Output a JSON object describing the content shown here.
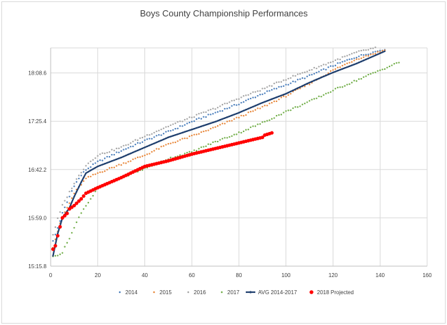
{
  "chart_data": {
    "type": "scatter",
    "title": "Boys County Championship Performances",
    "xlabel": "",
    "ylabel": "",
    "xlim": [
      0,
      160
    ],
    "x_ticks": [
      0,
      20,
      40,
      60,
      80,
      100,
      120,
      140,
      160
    ],
    "x_tick_labels": [
      "0",
      "20",
      "40",
      "60",
      "80",
      "100",
      "120",
      "140",
      "160"
    ],
    "ylim_seconds": [
      915.8,
      1111.0
    ],
    "y_ticks_seconds": [
      915.8,
      959.0,
      1002.2,
      1045.4,
      1088.6
    ],
    "y_tick_labels": [
      "15:15.8",
      "15:59.0",
      "16:42.2",
      "17:25.4",
      "18:08.6"
    ],
    "grid": true,
    "legend_position": "bottom",
    "series": [
      {
        "name": "2014",
        "style": "small-dots",
        "color": "#4a7ebb",
        "n": 142,
        "anchors": [
          [
            1,
            938
          ],
          [
            3,
            950
          ],
          [
            5,
            963
          ],
          [
            8,
            978
          ],
          [
            10,
            988
          ],
          [
            13,
            997
          ],
          [
            15,
            1002
          ],
          [
            20,
            1009
          ],
          [
            30,
            1019
          ],
          [
            40,
            1028
          ],
          [
            50,
            1036
          ],
          [
            60,
            1045
          ],
          [
            70,
            1053
          ],
          [
            80,
            1061
          ],
          [
            90,
            1070
          ],
          [
            100,
            1078
          ],
          [
            110,
            1086
          ],
          [
            120,
            1095
          ],
          [
            130,
            1103
          ],
          [
            142,
            1110
          ]
        ]
      },
      {
        "name": "2015",
        "style": "small-dots",
        "color": "#e8873a",
        "n": 142,
        "anchors": [
          [
            1,
            933
          ],
          [
            3,
            947
          ],
          [
            5,
            960
          ],
          [
            8,
            972
          ],
          [
            10,
            981
          ],
          [
            13,
            989
          ],
          [
            15,
            994
          ],
          [
            20,
            999
          ],
          [
            30,
            1007
          ],
          [
            40,
            1015
          ],
          [
            50,
            1025
          ],
          [
            60,
            1032
          ],
          [
            70,
            1040
          ],
          [
            80,
            1049
          ],
          [
            90,
            1058
          ],
          [
            100,
            1068
          ],
          [
            110,
            1079
          ],
          [
            120,
            1091
          ],
          [
            130,
            1101
          ],
          [
            142,
            1109
          ]
        ]
      },
      {
        "name": "2016",
        "style": "small-dots",
        "color": "#a5a5a5",
        "n": 138,
        "anchors": [
          [
            1,
            944
          ],
          [
            3,
            958
          ],
          [
            5,
            970
          ],
          [
            8,
            982
          ],
          [
            10,
            990
          ],
          [
            13,
            1000
          ],
          [
            15,
            1006
          ],
          [
            20,
            1015
          ],
          [
            30,
            1022
          ],
          [
            40,
            1032
          ],
          [
            50,
            1041
          ],
          [
            60,
            1049
          ],
          [
            70,
            1057
          ],
          [
            80,
            1066
          ],
          [
            90,
            1074
          ],
          [
            100,
            1083
          ],
          [
            110,
            1091
          ],
          [
            120,
            1099
          ],
          [
            130,
            1107
          ],
          [
            138,
            1111
          ]
        ]
      },
      {
        "name": "2017",
        "style": "small-dots",
        "color": "#70ad47",
        "n": 148,
        "anchors": [
          [
            1,
            924
          ],
          [
            5,
            928
          ],
          [
            10,
            950
          ],
          [
            13,
            964
          ],
          [
            15,
            970
          ],
          [
            20,
            985
          ],
          [
            30,
            995
          ],
          [
            40,
            1003
          ],
          [
            50,
            1012
          ],
          [
            60,
            1018
          ],
          [
            70,
            1027
          ],
          [
            80,
            1035
          ],
          [
            90,
            1044
          ],
          [
            100,
            1054
          ],
          [
            110,
            1063
          ],
          [
            120,
            1073
          ],
          [
            130,
            1082
          ],
          [
            140,
            1091
          ],
          [
            148,
            1098
          ]
        ]
      },
      {
        "name": "AVG 2014-2017",
        "style": "line",
        "color": "#1f3f6e",
        "n": 142,
        "anchors": [
          [
            1,
            925
          ],
          [
            3,
            945
          ],
          [
            5,
            959
          ],
          [
            8,
            968
          ],
          [
            10,
            978
          ],
          [
            13,
            991
          ],
          [
            15,
            999
          ],
          [
            20,
            1005
          ],
          [
            30,
            1013
          ],
          [
            40,
            1022
          ],
          [
            50,
            1031
          ],
          [
            60,
            1038
          ],
          [
            70,
            1045
          ],
          [
            80,
            1053
          ],
          [
            90,
            1062
          ],
          [
            100,
            1070
          ],
          [
            110,
            1080
          ],
          [
            120,
            1089
          ],
          [
            130,
            1097
          ],
          [
            142,
            1108
          ]
        ]
      },
      {
        "name": "2018 Projected",
        "style": "large-dots",
        "color": "#ff0000",
        "n": 94,
        "anchors": [
          [
            1,
            931
          ],
          [
            2,
            934
          ],
          [
            3,
            943
          ],
          [
            5,
            959
          ],
          [
            7,
            963
          ],
          [
            8,
            967
          ],
          [
            10,
            970
          ],
          [
            13,
            976
          ],
          [
            15,
            981
          ],
          [
            20,
            986
          ],
          [
            30,
            995
          ],
          [
            40,
            1005
          ],
          [
            50,
            1010
          ],
          [
            60,
            1016
          ],
          [
            70,
            1021
          ],
          [
            80,
            1026
          ],
          [
            90,
            1031
          ],
          [
            91,
            1033
          ],
          [
            94,
            1035
          ]
        ]
      }
    ]
  }
}
